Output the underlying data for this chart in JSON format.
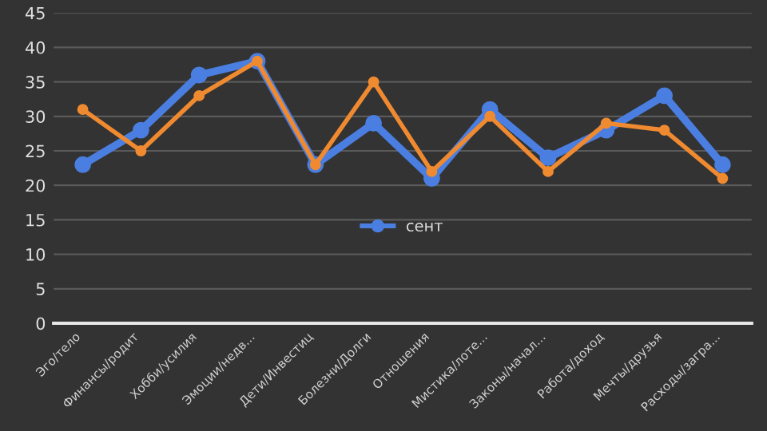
{
  "chart_data": {
    "type": "line",
    "categories": [
      "Эго/тело",
      "Финансы/родит",
      "Хобби/усилия",
      "Эмоции/недв...",
      "Дети/Инвестиц",
      "Болезни/Долги",
      "Отношения",
      "Мистика/лоте...",
      "Законы/начал...",
      "Работа/доход",
      "Мечты/друзья",
      "Расходы/загра..."
    ],
    "series": [
      {
        "name": "сент",
        "color": "#4a7ee0",
        "values": [
          23,
          28,
          36,
          38,
          23,
          29,
          21,
          31,
          24,
          28,
          33,
          23
        ]
      },
      {
        "color": "#f08a30",
        "values": [
          31,
          25,
          33,
          38,
          23,
          35,
          22,
          30,
          22,
          29,
          28,
          21
        ]
      }
    ],
    "ylim": [
      0,
      45
    ],
    "yticks": [
      0,
      5,
      10,
      15,
      20,
      25,
      30,
      35,
      40,
      45
    ],
    "grid": "y",
    "legend": "center",
    "marker": "circle",
    "line_style": "solid"
  }
}
